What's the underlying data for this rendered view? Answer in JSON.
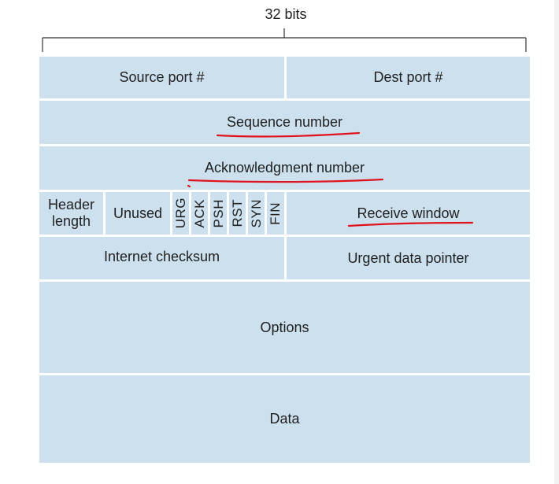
{
  "header": {
    "width_label": "32 bits"
  },
  "segment": {
    "source_port": "Source port #",
    "dest_port": "Dest port #",
    "sequence_number": "Sequence number",
    "acknowledgment_number": "Acknowledgment number",
    "header_length_line1": "Header",
    "header_length_line2": "length",
    "unused": "Unused",
    "flags": [
      "URG",
      "ACK",
      "PSH",
      "RST",
      "SYN",
      "FIN"
    ],
    "receive_window": "Receive window",
    "internet_checksum": "Internet checksum",
    "urgent_data_pointer": "Urgent data pointer",
    "options": "Options",
    "data": "Data"
  },
  "annotation_color": "#e0141e"
}
